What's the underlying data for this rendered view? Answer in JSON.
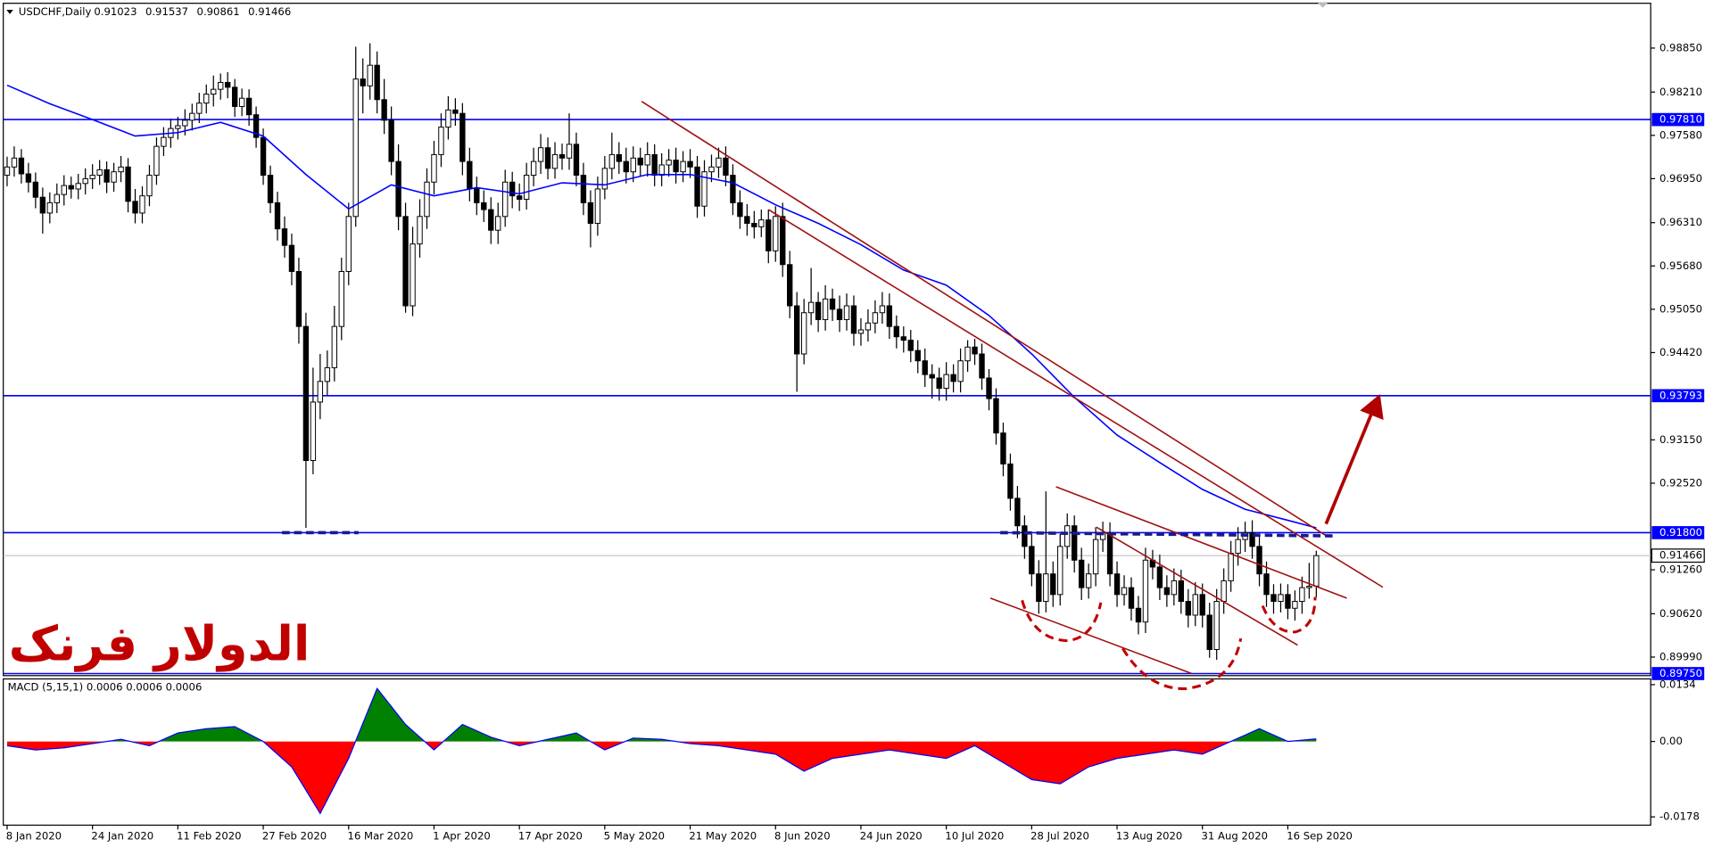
{
  "chart_data": {
    "type": "candlestick",
    "symbol": "USDCHF,Daily",
    "annotation": "الدولار فرنک",
    "categories": [
      "8 Jan 2020",
      null,
      null,
      null,
      null,
      null,
      null,
      null,
      null,
      null,
      null,
      null,
      "24 Jan 2020",
      null,
      null,
      null,
      null,
      null,
      null,
      null,
      null,
      null,
      null,
      null,
      "11 Feb 2020",
      null,
      null,
      null,
      null,
      null,
      null,
      null,
      null,
      null,
      null,
      null,
      "27 Feb 2020",
      null,
      null,
      null,
      null,
      null,
      null,
      null,
      null,
      null,
      null,
      null,
      "16 Mar 2020",
      null,
      null,
      null,
      null,
      null,
      null,
      null,
      null,
      null,
      null,
      null,
      "1 Apr 2020",
      null,
      null,
      null,
      null,
      null,
      null,
      null,
      null,
      null,
      null,
      null,
      "17 Apr 2020",
      null,
      null,
      null,
      null,
      null,
      null,
      null,
      null,
      null,
      null,
      null,
      "5 May 2020",
      null,
      null,
      null,
      null,
      null,
      null,
      null,
      null,
      null,
      null,
      null,
      "21 May 2020",
      null,
      null,
      null,
      null,
      null,
      null,
      null,
      null,
      null,
      null,
      null,
      "8 Jun 2020",
      null,
      null,
      null,
      null,
      null,
      null,
      null,
      null,
      null,
      null,
      null,
      "24 Jun 2020",
      null,
      null,
      null,
      null,
      null,
      null,
      null,
      null,
      null,
      null,
      null,
      "10 Jul 2020",
      null,
      null,
      null,
      null,
      null,
      null,
      null,
      null,
      null,
      null,
      null,
      "28 Jul 2020",
      null,
      null,
      null,
      null,
      null,
      null,
      null,
      null,
      null,
      null,
      null,
      "13 Aug 2020",
      null,
      null,
      null,
      null,
      null,
      null,
      null,
      null,
      null,
      null,
      null,
      "31 Aug 2020",
      null,
      null,
      null,
      null,
      null,
      null,
      null,
      null,
      null,
      null,
      null,
      "16 Sep 2020",
      null,
      null,
      null,
      null
    ],
    "open": [
      0.97,
      0.9712,
      0.9725,
      0.9702,
      0.969,
      0.9668,
      0.9645,
      0.966,
      0.9672,
      0.9685,
      0.968,
      0.9688,
      0.9695,
      0.97,
      0.9708,
      0.969,
      0.9705,
      0.9712,
      0.9662,
      0.9645,
      0.967,
      0.97,
      0.9742,
      0.9755,
      0.9768,
      0.9772,
      0.978,
      0.979,
      0.9805,
      0.9818,
      0.9825,
      0.9835,
      0.9828,
      0.98,
      0.9812,
      0.9788,
      0.9755,
      0.97,
      0.966,
      0.9622,
      0.9598,
      0.956,
      0.948,
      0.9285,
      0.937,
      0.94,
      0.942,
      0.948,
      0.956,
      0.964,
      0.984,
      0.983,
      0.986,
      0.981,
      0.978,
      0.972,
      0.964,
      0.951,
      0.96,
      0.964,
      0.969,
      0.973,
      0.977,
      0.9795,
      0.979,
      0.972,
      0.968,
      0.966,
      0.965,
      0.962,
      0.964,
      0.969,
      0.967,
      0.9665,
      0.97,
      0.972,
      0.974,
      0.971,
      0.973,
      0.9725,
      0.9745,
      0.97,
      0.966,
      0.963,
      0.968,
      0.971,
      0.973,
      0.972,
      0.9705,
      0.9725,
      0.9715,
      0.973,
      0.97,
      0.9715,
      0.9722,
      0.9705,
      0.972,
      0.9712,
      0.9655,
      0.9705,
      0.9712,
      0.9725,
      0.97,
      0.966,
      0.964,
      0.963,
      0.9625,
      0.9635,
      0.959,
      0.964,
      0.957,
      0.951,
      0.944,
      0.95,
      0.9515,
      0.949,
      0.952,
      0.9505,
      0.949,
      0.951,
      0.947,
      0.9475,
      0.9485,
      0.95,
      0.951,
      0.948,
      0.9465,
      0.946,
      0.9445,
      0.943,
      0.941,
      0.9405,
      0.939,
      0.941,
      0.94,
      0.943,
      0.945,
      0.944,
      0.9405,
      0.9375,
      0.9325,
      0.928,
      0.923,
      0.919,
      0.916,
      0.912,
      0.908,
      0.912,
      0.909,
      0.916,
      0.919,
      0.914,
      0.91,
      0.912,
      0.917,
      0.918,
      0.912,
      0.909,
      0.91,
      0.907,
      0.905,
      0.914,
      0.913,
      0.91,
      0.909,
      0.911,
      0.908,
      0.906,
      0.909,
      0.906,
      0.901,
      0.908,
      0.911,
      0.915,
      0.917,
      0.918,
      0.916,
      0.912,
      0.909,
      0.908,
      0.909,
      0.907,
      0.908,
      0.91,
      0.91023
    ],
    "high": [
      0.9727,
      0.9742,
      0.9738,
      0.9718,
      0.9704,
      0.9682,
      0.9675,
      0.9688,
      0.97,
      0.9698,
      0.9702,
      0.971,
      0.9716,
      0.9722,
      0.972,
      0.9718,
      0.9728,
      0.9725,
      0.968,
      0.9684,
      0.9715,
      0.9755,
      0.977,
      0.9782,
      0.9785,
      0.9796,
      0.9804,
      0.982,
      0.9832,
      0.9845,
      0.9848,
      0.985,
      0.984,
      0.9826,
      0.9825,
      0.98,
      0.9768,
      0.9714,
      0.9676,
      0.964,
      0.9615,
      0.958,
      0.95,
      0.942,
      0.944,
      0.9445,
      0.951,
      0.958,
      0.966,
      0.9887,
      0.987,
      0.9892,
      0.988,
      0.984,
      0.98,
      0.9745,
      0.966,
      0.9625,
      0.9665,
      0.971,
      0.975,
      0.979,
      0.9815,
      0.9812,
      0.9805,
      0.974,
      0.9698,
      0.9678,
      0.9668,
      0.966,
      0.9708,
      0.9705,
      0.9688,
      0.9718,
      0.974,
      0.976,
      0.9755,
      0.9748,
      0.9746,
      0.979,
      0.9762,
      0.9718,
      0.9678,
      0.9698,
      0.9728,
      0.9762,
      0.9748,
      0.974,
      0.9742,
      0.974,
      0.9748,
      0.9745,
      0.9732,
      0.9738,
      0.974,
      0.9735,
      0.9738,
      0.9728,
      0.9722,
      0.973,
      0.974,
      0.9742,
      0.9716,
      0.9678,
      0.9658,
      0.9648,
      0.965,
      0.965,
      0.9655,
      0.966,
      0.959,
      0.953,
      0.952,
      0.9565,
      0.953,
      0.954,
      0.9535,
      0.9525,
      0.9528,
      0.9525,
      0.9492,
      0.9505,
      0.9518,
      0.953,
      0.9528,
      0.9496,
      0.948,
      0.9475,
      0.946,
      0.9448,
      0.9425,
      0.942,
      0.9428,
      0.9425,
      0.9448,
      0.946,
      0.9462,
      0.9455,
      0.9418,
      0.939,
      0.934,
      0.9295,
      0.9248,
      0.9205,
      0.9178,
      0.914,
      0.924,
      0.9138,
      0.9178,
      0.9208,
      0.9205,
      0.9158,
      0.9135,
      0.9188,
      0.9196,
      0.9195,
      0.9138,
      0.9118,
      0.9115,
      0.9088,
      0.9158,
      0.9155,
      0.9148,
      0.9118,
      0.9128,
      0.9126,
      0.9098,
      0.9108,
      0.9106,
      0.9078,
      0.9098,
      0.9128,
      0.9168,
      0.9188,
      0.9196,
      0.9198,
      0.9175,
      0.9138,
      0.9105,
      0.9106,
      0.9105,
      0.9096,
      0.9116,
      0.9136,
      0.91537
    ],
    "low": [
      0.9684,
      0.9698,
      0.9688,
      0.9675,
      0.9652,
      0.9615,
      0.963,
      0.9645,
      0.9656,
      0.9666,
      0.9665,
      0.9672,
      0.968,
      0.9686,
      0.9674,
      0.9676,
      0.969,
      0.9646,
      0.963,
      0.963,
      0.9655,
      0.9686,
      0.9728,
      0.974,
      0.9752,
      0.9758,
      0.9765,
      0.9776,
      0.979,
      0.98,
      0.981,
      0.9812,
      0.9785,
      0.9786,
      0.9772,
      0.974,
      0.9686,
      0.9645,
      0.9605,
      0.958,
      0.954,
      0.9455,
      0.9187,
      0.9265,
      0.9345,
      0.938,
      0.94,
      0.946,
      0.954,
      0.9625,
      0.979,
      0.981,
      0.979,
      0.976,
      0.97,
      0.962,
      0.95,
      0.9495,
      0.958,
      0.9622,
      0.9672,
      0.9712,
      0.9752,
      0.9772,
      0.97,
      0.9662,
      0.9642,
      0.9632,
      0.96,
      0.96,
      0.9625,
      0.9652,
      0.9648,
      0.965,
      0.9684,
      0.9702,
      0.9694,
      0.9695,
      0.9708,
      0.9708,
      0.9684,
      0.9642,
      0.9595,
      0.9612,
      0.9665,
      0.9694,
      0.9702,
      0.9688,
      0.969,
      0.9698,
      0.9698,
      0.9684,
      0.9684,
      0.9698,
      0.9688,
      0.969,
      0.9696,
      0.9638,
      0.964,
      0.969,
      0.9696,
      0.9684,
      0.9642,
      0.9622,
      0.9612,
      0.9608,
      0.961,
      0.9572,
      0.9574,
      0.9552,
      0.9492,
      0.9385,
      0.9425,
      0.9482,
      0.9472,
      0.9474,
      0.9488,
      0.9472,
      0.9474,
      0.9452,
      0.9452,
      0.9458,
      0.947,
      0.9484,
      0.9462,
      0.9448,
      0.9442,
      0.9428,
      0.9412,
      0.9392,
      0.9375,
      0.9372,
      0.9372,
      0.9384,
      0.9384,
      0.9414,
      0.9424,
      0.9388,
      0.9358,
      0.9308,
      0.9262,
      0.9212,
      0.9172,
      0.9142,
      0.9102,
      0.9062,
      0.9064,
      0.9072,
      0.9074,
      0.9142,
      0.9122,
      0.9082,
      0.9084,
      0.9102,
      0.9152,
      0.9102,
      0.9072,
      0.9074,
      0.9052,
      0.9032,
      0.9034,
      0.9112,
      0.9082,
      0.9072,
      0.9074,
      0.9062,
      0.9042,
      0.9044,
      0.9042,
      0.8998,
      0.8995,
      0.9062,
      0.9094,
      0.9132,
      0.9152,
      0.9142,
      0.9102,
      0.9072,
      0.9062,
      0.9064,
      0.9054,
      0.9052,
      0.9062,
      0.9084,
      0.90861
    ],
    "close": [
      0.9712,
      0.9725,
      0.9702,
      0.969,
      0.9668,
      0.9645,
      0.966,
      0.9672,
      0.9685,
      0.968,
      0.9688,
      0.9695,
      0.97,
      0.9708,
      0.969,
      0.9705,
      0.9712,
      0.9662,
      0.9645,
      0.967,
      0.97,
      0.9742,
      0.9755,
      0.9768,
      0.9772,
      0.978,
      0.979,
      0.9805,
      0.9818,
      0.9825,
      0.9835,
      0.9828,
      0.98,
      0.9812,
      0.9788,
      0.9755,
      0.97,
      0.966,
      0.9622,
      0.9598,
      0.956,
      0.948,
      0.9285,
      0.937,
      0.94,
      0.942,
      0.948,
      0.956,
      0.964,
      0.984,
      0.983,
      0.986,
      0.981,
      0.978,
      0.972,
      0.964,
      0.951,
      0.96,
      0.964,
      0.969,
      0.973,
      0.977,
      0.9795,
      0.979,
      0.972,
      0.968,
      0.966,
      0.965,
      0.962,
      0.964,
      0.969,
      0.967,
      0.9665,
      0.97,
      0.972,
      0.974,
      0.971,
      0.973,
      0.9725,
      0.9745,
      0.97,
      0.966,
      0.963,
      0.968,
      0.971,
      0.973,
      0.972,
      0.9705,
      0.9725,
      0.9715,
      0.973,
      0.97,
      0.9715,
      0.9722,
      0.9705,
      0.972,
      0.9712,
      0.9655,
      0.9705,
      0.9712,
      0.9725,
      0.97,
      0.966,
      0.964,
      0.963,
      0.9625,
      0.9635,
      0.959,
      0.964,
      0.957,
      0.951,
      0.944,
      0.95,
      0.9515,
      0.949,
      0.952,
      0.9505,
      0.949,
      0.951,
      0.947,
      0.9475,
      0.9485,
      0.95,
      0.951,
      0.948,
      0.9465,
      0.946,
      0.9445,
      0.943,
      0.941,
      0.9405,
      0.939,
      0.941,
      0.94,
      0.943,
      0.945,
      0.944,
      0.9405,
      0.9375,
      0.9325,
      0.928,
      0.923,
      0.919,
      0.916,
      0.912,
      0.908,
      0.912,
      0.909,
      0.916,
      0.919,
      0.914,
      0.91,
      0.912,
      0.917,
      0.918,
      0.912,
      0.909,
      0.91,
      0.907,
      0.905,
      0.914,
      0.913,
      0.91,
      0.909,
      0.911,
      0.908,
      0.906,
      0.909,
      0.906,
      0.901,
      0.908,
      0.911,
      0.915,
      0.917,
      0.918,
      0.916,
      0.912,
      0.909,
      0.908,
      0.909,
      0.907,
      0.908,
      0.91,
      0.9102,
      0.91466
    ],
    "bull_color": "#ffffff",
    "bear_color": "#000000",
    "xlim": [
      -1,
      231
    ],
    "ylim": [
      0.8972,
      0.9947
    ],
    "yticks": [
      {
        "value": 0.9885,
        "label": "0.98850"
      },
      {
        "value": 0.9821,
        "label": "0.98210"
      },
      {
        "value": 0.9758,
        "label": "0.97580"
      },
      {
        "value": 0.9695,
        "label": "0.96950"
      },
      {
        "value": 0.9631,
        "label": "0.96310"
      },
      {
        "value": 0.9568,
        "label": "0.95680"
      },
      {
        "value": 0.9505,
        "label": "0.95050"
      },
      {
        "value": 0.9442,
        "label": "0.94420"
      },
      {
        "value": 0.9315,
        "label": "0.93150"
      },
      {
        "value": 0.9252,
        "label": "0.92520"
      },
      {
        "value": 0.9126,
        "label": "0.91260"
      },
      {
        "value": 0.9062,
        "label": "0.90620"
      },
      {
        "value": 0.8999,
        "label": "0.89990"
      }
    ],
    "levels": [
      {
        "value": 0.9781,
        "label": "0.97810",
        "color": "#0000ff"
      },
      {
        "value": 0.93793,
        "label": "0.93793",
        "color": "#0000ff"
      },
      {
        "value": 0.918,
        "label": "0.91800",
        "color": "#0000ff"
      },
      {
        "value": 0.8975,
        "label": "0.89750",
        "color": "#0000ff"
      }
    ],
    "current_price_color": "#c0c0c0",
    "moving_average": {
      "color": "#0000ff",
      "x": [
        0,
        6,
        12,
        18,
        24,
        30,
        36,
        42,
        48,
        54,
        60,
        66,
        72,
        78,
        84,
        90,
        96,
        102,
        108,
        114,
        120,
        126,
        132,
        138,
        144,
        150,
        156,
        162,
        168,
        174,
        180,
        184
      ],
      "values": [
        0.9831,
        0.9804,
        0.9781,
        0.9757,
        0.9762,
        0.9777,
        0.9757,
        0.9701,
        0.9651,
        0.9686,
        0.967,
        0.9682,
        0.9673,
        0.9689,
        0.9686,
        0.9701,
        0.9701,
        0.9689,
        0.9657,
        0.963,
        0.9599,
        0.9562,
        0.954,
        0.9496,
        0.944,
        0.9377,
        0.9322,
        0.9282,
        0.9243,
        0.9214,
        0.9198,
        0.9187
      ]
    },
    "macd": {
      "title": "MACD (5,15,1) 0.0006 0.0006 0.0006",
      "line_color": "#0000ff",
      "positive_color": "#008000",
      "negative_color": "#ff0000",
      "ylim": [
        -0.0195,
        0.0145
      ],
      "yticks": [
        0.0134,
        {
          "value": 0,
          "label": "0.00"
        },
        -0.0178
      ],
      "x": [
        0,
        4,
        8,
        12,
        16,
        20,
        24,
        28,
        32,
        36,
        40,
        44,
        48,
        52,
        56,
        60,
        64,
        68,
        72,
        76,
        80,
        84,
        88,
        92,
        96,
        100,
        104,
        108,
        112,
        116,
        120,
        124,
        128,
        132,
        136,
        140,
        144,
        148,
        152,
        156,
        160,
        164,
        168,
        172,
        176,
        180,
        184
      ],
      "values": [
        -0.001,
        -0.002,
        -0.0015,
        -0.0005,
        0.0005,
        -0.001,
        0.002,
        0.003,
        0.0035,
        0,
        -0.006,
        -0.017,
        -0.004,
        0.0125,
        0.004,
        -0.002,
        0.004,
        0.001,
        -0.001,
        0.0005,
        0.002,
        -0.002,
        0.0008,
        0.0005,
        -0.0005,
        -0.001,
        -0.002,
        -0.003,
        -0.007,
        -0.004,
        -0.003,
        -0.002,
        -0.003,
        -0.004,
        -0.001,
        -0.005,
        -0.009,
        -0.01,
        -0.006,
        -0.004,
        -0.003,
        -0.002,
        -0.003,
        0,
        0.003,
        0,
        0.0006
      ]
    }
  }
}
